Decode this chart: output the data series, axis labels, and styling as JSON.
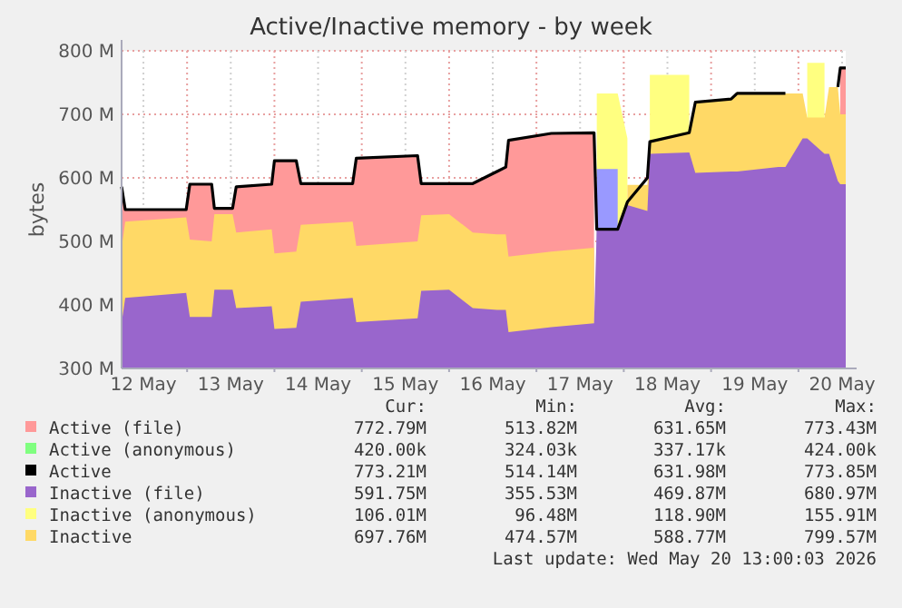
{
  "chart_data": {
    "type": "area",
    "title": "Active/Inactive memory - by week",
    "ylabel": "bytes",
    "x": [
      "2026-05-12T06:00",
      "2026-05-12T07:00",
      "2026-05-12T23:45",
      "2026-05-13T00:45",
      "2026-05-13T06:45",
      "2026-05-13T07:30",
      "2026-05-13T12:30",
      "2026-05-13T13:30",
      "2026-05-13T23:15",
      "2026-05-14T00:00",
      "2026-05-14T06:00",
      "2026-05-14T07:15",
      "2026-05-14T21:30",
      "2026-05-14T22:30",
      "2026-05-15T15:20",
      "2026-05-15T16:20",
      "2026-05-16T00:00",
      "2026-05-16T06:30",
      "2026-05-16T13:10",
      "2026-05-16T15:35",
      "2026-05-16T16:20",
      "2026-05-17T04:05",
      "2026-05-17T15:50",
      "2026-05-17T16:35",
      "2026-05-17T22:20",
      "2026-05-18T01:00",
      "2026-05-18T06:30",
      "2026-05-18T07:10",
      "2026-05-18T18:00",
      "2026-05-18T19:40",
      "2026-05-19T05:30",
      "2026-05-19T07:10",
      "2026-05-19T18:30",
      "2026-05-19T20:25",
      "2026-05-20T01:10",
      "2026-05-20T02:25",
      "2026-05-20T07:10",
      "2026-05-20T08:25",
      "2026-05-20T10:50",
      "2026-05-20T11:30",
      "2026-05-20T13:00"
    ],
    "xlim": [
      "2026-05-12T06:00",
      "2026-05-20T13:00"
    ],
    "xticks": [
      {
        "value": "2026-05-12T12:00",
        "label": "12 May"
      },
      {
        "value": "2026-05-13",
        "label": null
      },
      {
        "value": "2026-05-13T12:00",
        "label": "13 May"
      },
      {
        "value": "2026-05-14",
        "label": null
      },
      {
        "value": "2026-05-14T12:00",
        "label": "14 May"
      },
      {
        "value": "2026-05-15",
        "label": null
      },
      {
        "value": "2026-05-15T12:00",
        "label": "15 May"
      },
      {
        "value": "2026-05-16",
        "label": null
      },
      {
        "value": "2026-05-16T12:00",
        "label": "16 May"
      },
      {
        "value": "2026-05-17",
        "label": null
      },
      {
        "value": "2026-05-17T12:00",
        "label": "17 May"
      },
      {
        "value": "2026-05-18",
        "label": null
      },
      {
        "value": "2026-05-18T12:00",
        "label": "18 May"
      },
      {
        "value": "2026-05-19",
        "label": null
      },
      {
        "value": "2026-05-19T12:00",
        "label": "19 May"
      },
      {
        "value": "2026-05-20",
        "label": null
      },
      {
        "value": "2026-05-20T12:00",
        "label": "20 May"
      }
    ],
    "ylim": [
      300,
      800
    ],
    "yticks": [
      {
        "value": 300,
        "label": "300 M"
      },
      {
        "value": 400,
        "label": "400 M"
      },
      {
        "value": 500,
        "label": "500 M"
      },
      {
        "value": 600,
        "label": "600 M"
      },
      {
        "value": 700,
        "label": "700 M"
      },
      {
        "value": 800,
        "label": "800 M"
      }
    ],
    "grid": true,
    "legend": "bottom",
    "series": [
      {
        "name": "Active (file)",
        "color": "#ff9999",
        "values": [
          586,
          550,
          550,
          590,
          590,
          552,
          552,
          586,
          590,
          627,
          627,
          591,
          591,
          631,
          635,
          591,
          591,
          591,
          610,
          617,
          659,
          670,
          671,
          null,
          null,
          null,
          null,
          null,
          null,
          null,
          null,
          null,
          null,
          null,
          null,
          null,
          null,
          null,
          null,
          773,
          773
        ]
      },
      {
        "name": "Active (anonymous)",
        "color": "#80ff80",
        "values": [
          null,
          null,
          null,
          null,
          null,
          null,
          null,
          null,
          null,
          null,
          null,
          null,
          null,
          null,
          null,
          null,
          null,
          null,
          null,
          null,
          null,
          null,
          null,
          null,
          null,
          null,
          null,
          null,
          null,
          null,
          null,
          null,
          null,
          null,
          null,
          null,
          null,
          null,
          null,
          null,
          null
        ]
      },
      {
        "name": "Active",
        "type": "line",
        "color": "#000000",
        "values": [
          586,
          550,
          550,
          590,
          590,
          552,
          552,
          586,
          590,
          627,
          627,
          591,
          591,
          631,
          635,
          591,
          591,
          591,
          610,
          617,
          659,
          670,
          671,
          519,
          519,
          562,
          600,
          657,
          671,
          719,
          724,
          733,
          733,
          733,
          null,
          null,
          null,
          null,
          743,
          773,
          773
        ]
      },
      {
        "name": "Inactive (file)",
        "color": "#9966cc",
        "values": [
          371,
          411,
          419,
          381,
          381,
          424,
          424,
          395,
          398,
          362,
          364,
          405,
          411,
          373,
          379,
          422,
          424,
          395,
          392,
          392,
          357,
          365,
          371,
          519,
          519,
          557,
          548,
          638,
          640,
          608,
          610,
          610,
          617,
          617,
          662,
          662,
          638,
          638,
          595,
          590,
          590
        ]
      },
      {
        "name": "Inactive (anonymous)",
        "color": "#ffff80",
        "values": [
          null,
          null,
          null,
          null,
          null,
          null,
          null,
          null,
          null,
          null,
          null,
          null,
          null,
          null,
          null,
          null,
          null,
          null,
          null,
          null,
          null,
          null,
          null,
          733,
          733,
          662,
          null,
          762,
          762,
          null,
          null,
          null,
          null,
          null,
          null,
          781,
          781,
          null,
          null,
          null,
          null
        ]
      },
      {
        "name": "Inactive",
        "color": "#ffd966",
        "values": [
          490,
          531,
          538,
          503,
          500,
          543,
          543,
          514,
          519,
          481,
          484,
          526,
          531,
          493,
          500,
          541,
          543,
          514,
          511,
          511,
          476,
          484,
          490,
          null,
          null,
          589,
          589,
          657,
          671,
          719,
          724,
          733,
          733,
          733,
          733,
          695,
          695,
          743,
          743,
          700,
          700
        ]
      },
      {
        "color": "#9999ff",
        "values": [
          null,
          null,
          null,
          null,
          null,
          null,
          null,
          null,
          null,
          null,
          null,
          null,
          null,
          null,
          null,
          null,
          null,
          null,
          null,
          null,
          null,
          null,
          null,
          614,
          614,
          null,
          null,
          null,
          null,
          null,
          null,
          null,
          null,
          null,
          null,
          null,
          null,
          null,
          null,
          null,
          null
        ]
      }
    ],
    "annotations": [
      "Cur:",
      "Min:",
      "Avg:",
      "Max:",
      "772.79M",
      "513.82M",
      "631.65M",
      "773.43M",
      "420.00k",
      "324.03k",
      "337.17k",
      "424.00k",
      "773.21M",
      "514.14M",
      "631.98M",
      "773.85M",
      "591.75M",
      "355.53M",
      "469.87M",
      "680.97M",
      "106.01M",
      "96.48M",
      "118.90M",
      "155.91M",
      "697.76M",
      "474.57M",
      "588.77M",
      "799.57M",
      "Last update: Wed May 20 13:00:03 2026"
    ]
  }
}
